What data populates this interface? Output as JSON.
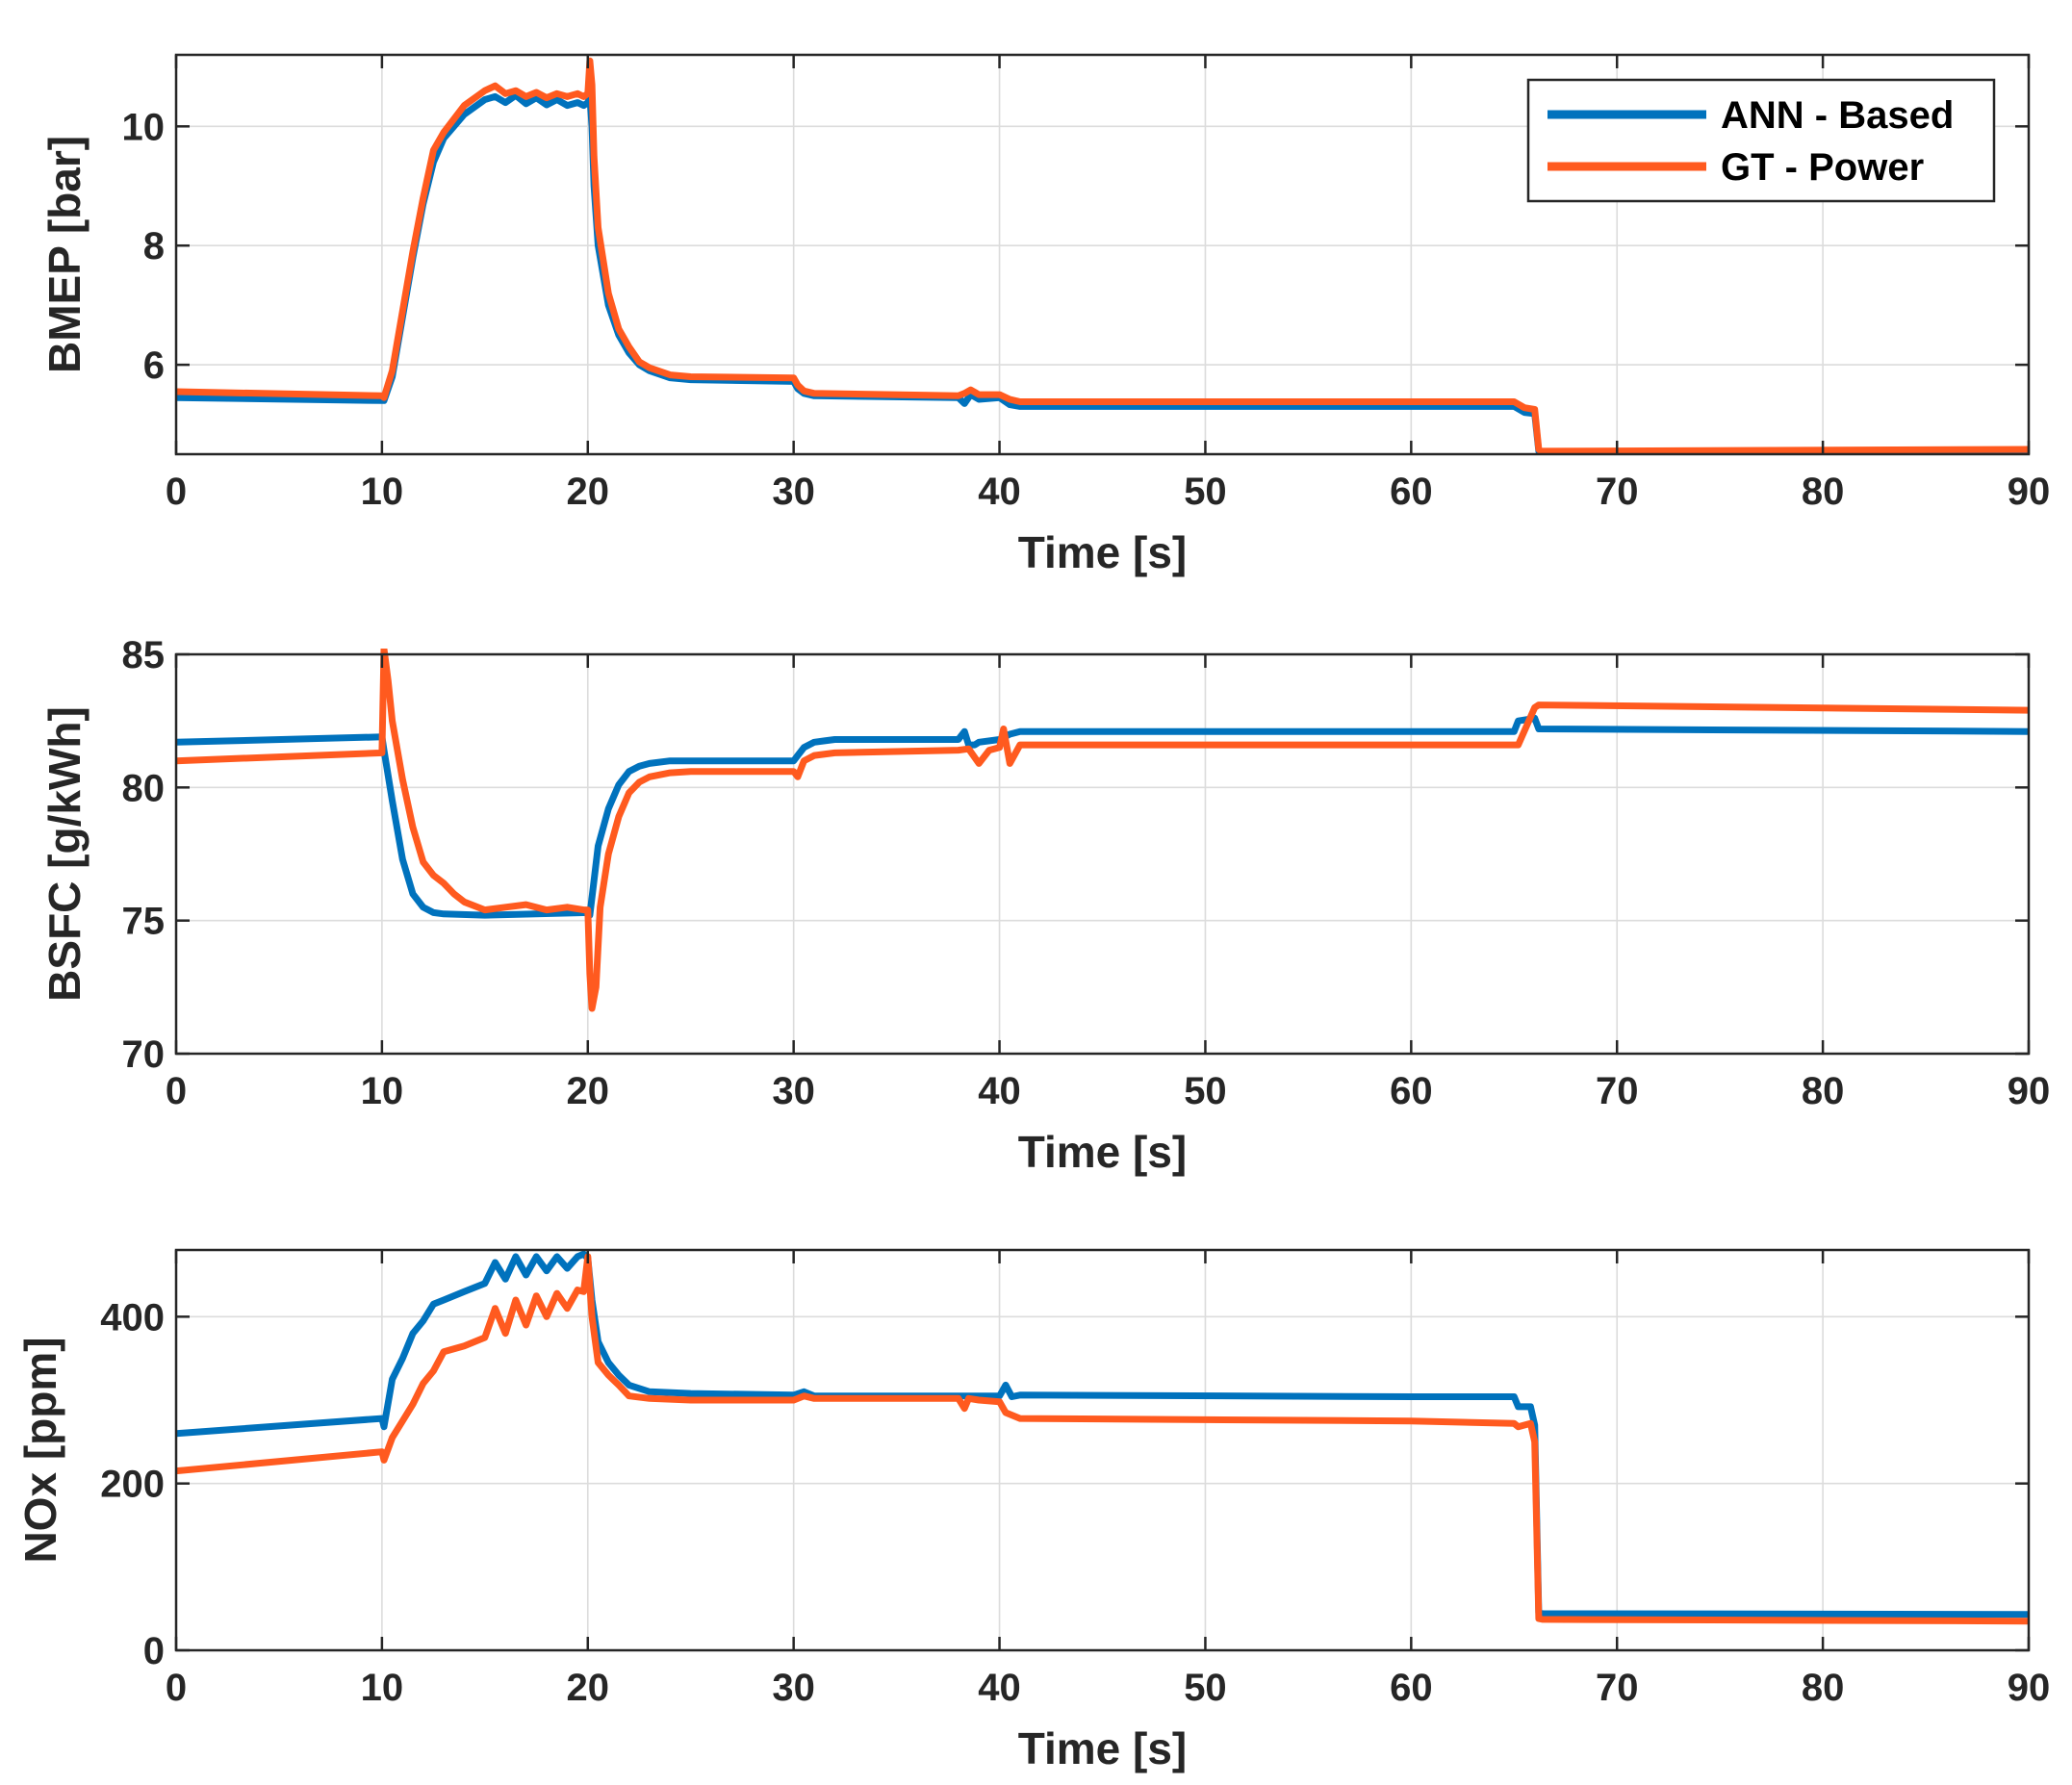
{
  "colors": {
    "ann": "#0072BD",
    "gt": "#FF5A1F",
    "grid": "#DCDCDC",
    "axis": "#262626"
  },
  "legend": {
    "placement": "top-right of first panel",
    "entries": [
      {
        "label": "ANN - Based",
        "color_key": "ann"
      },
      {
        "label": "GT - Power",
        "color_key": "gt"
      }
    ]
  },
  "chart_data": [
    {
      "type": "line",
      "title": "",
      "xlabel": "Time [s]",
      "ylabel": "BMEP [bar]",
      "xlim": [
        0,
        90
      ],
      "ylim": [
        4.5,
        11.2
      ],
      "xticks": [
        0,
        10,
        20,
        30,
        40,
        50,
        60,
        70,
        80,
        90
      ],
      "yticks": [
        6,
        8,
        10
      ],
      "grid": true,
      "series": [
        {
          "name": "ANN - Based",
          "x": [
            0,
            10,
            10.1,
            10.5,
            11,
            11.5,
            12,
            12.5,
            13,
            14,
            15,
            15.5,
            16,
            16.5,
            17,
            17.5,
            18,
            18.5,
            19,
            19.5,
            19.8,
            20,
            20.1,
            20.2,
            20.3,
            20.5,
            21,
            21.5,
            22,
            22.5,
            23,
            24,
            25,
            30,
            30.2,
            30.5,
            31,
            38,
            38.3,
            38.6,
            39,
            40,
            40.5,
            41,
            60,
            65,
            65.5,
            66,
            66.2,
            66.3,
            90
          ],
          "y": [
            5.45,
            5.4,
            5.4,
            5.8,
            6.8,
            7.8,
            8.7,
            9.4,
            9.8,
            10.2,
            10.45,
            10.5,
            10.4,
            10.52,
            10.38,
            10.48,
            10.36,
            10.45,
            10.35,
            10.4,
            10.35,
            10.4,
            10.5,
            10.0,
            9.0,
            8.0,
            7.0,
            6.5,
            6.2,
            6.0,
            5.9,
            5.78,
            5.75,
            5.72,
            5.6,
            5.52,
            5.48,
            5.45,
            5.35,
            5.5,
            5.42,
            5.45,
            5.33,
            5.3,
            5.3,
            5.3,
            5.2,
            5.18,
            4.55,
            4.5,
            4.55
          ]
        },
        {
          "name": "GT - Power",
          "x": [
            0,
            10,
            10.1,
            10.5,
            11,
            11.5,
            12,
            12.5,
            13,
            14,
            15,
            15.5,
            16,
            16.5,
            17,
            17.5,
            18,
            18.5,
            19,
            19.5,
            19.8,
            20,
            20.1,
            20.2,
            20.3,
            20.5,
            21,
            21.5,
            22,
            22.5,
            23,
            24,
            25,
            30,
            30.2,
            30.5,
            31,
            38,
            38.3,
            38.6,
            39,
            40,
            40.5,
            41,
            60,
            65,
            65.5,
            66,
            66.2,
            66.3,
            90
          ],
          "y": [
            5.55,
            5.48,
            5.45,
            5.9,
            6.9,
            7.9,
            8.8,
            9.6,
            9.9,
            10.35,
            10.6,
            10.68,
            10.55,
            10.6,
            10.5,
            10.57,
            10.48,
            10.55,
            10.5,
            10.55,
            10.5,
            10.55,
            11.1,
            10.7,
            9.5,
            8.3,
            7.2,
            6.6,
            6.3,
            6.05,
            5.95,
            5.83,
            5.8,
            5.78,
            5.66,
            5.56,
            5.52,
            5.48,
            5.52,
            5.58,
            5.5,
            5.5,
            5.42,
            5.38,
            5.38,
            5.38,
            5.28,
            5.25,
            4.58,
            4.55,
            4.58
          ]
        }
      ]
    },
    {
      "type": "line",
      "title": "",
      "xlabel": "Time [s]",
      "ylabel": "BSFC [g/kWh]",
      "xlim": [
        0,
        90
      ],
      "ylim": [
        70,
        85
      ],
      "xticks": [
        0,
        10,
        20,
        30,
        40,
        50,
        60,
        70,
        80,
        90
      ],
      "yticks": [
        70,
        75,
        80,
        85
      ],
      "grid": true,
      "series": [
        {
          "name": "ANN - Based",
          "x": [
            0,
            10,
            10.1,
            10.5,
            11,
            11.5,
            12,
            12.5,
            13,
            15,
            20,
            20.1,
            20.3,
            20.5,
            21,
            21.5,
            22,
            22.5,
            23,
            24,
            25,
            30,
            30.2,
            30.5,
            31,
            31.5,
            32,
            38,
            38.3,
            38.5,
            38.8,
            39,
            40,
            40.5,
            41,
            60,
            65,
            65.2,
            66,
            66.2,
            90
          ],
          "y": [
            81.7,
            81.9,
            81.4,
            79.5,
            77.3,
            76.0,
            75.5,
            75.3,
            75.25,
            75.2,
            75.3,
            75.2,
            76.5,
            77.8,
            79.2,
            80.1,
            80.6,
            80.8,
            80.9,
            81.0,
            81.0,
            81.0,
            81.2,
            81.5,
            81.7,
            81.75,
            81.8,
            81.8,
            82.1,
            81.6,
            81.6,
            81.7,
            81.8,
            82.0,
            82.1,
            82.1,
            82.1,
            82.5,
            82.6,
            82.2,
            82.1
          ]
        },
        {
          "name": "GT - Power",
          "x": [
            0,
            10,
            10.1,
            10.3,
            10.5,
            11,
            11.5,
            12,
            12.5,
            13,
            13.5,
            14,
            15,
            16,
            17,
            18,
            19,
            19.8,
            20,
            20.1,
            20.2,
            20.4,
            20.6,
            21,
            21.5,
            22,
            22.5,
            23,
            24,
            25,
            30,
            30.2,
            30.5,
            31,
            32,
            38,
            38.5,
            39,
            39.5,
            40,
            40.2,
            40.5,
            41,
            60,
            65,
            65.2,
            66,
            66.2,
            90
          ],
          "y": [
            81.0,
            81.3,
            85.2,
            84.0,
            82.5,
            80.3,
            78.5,
            77.2,
            76.7,
            76.4,
            76.0,
            75.7,
            75.4,
            75.5,
            75.6,
            75.4,
            75.5,
            75.4,
            75.4,
            73.0,
            71.7,
            72.5,
            75.5,
            77.5,
            78.9,
            79.8,
            80.2,
            80.4,
            80.55,
            80.6,
            80.6,
            80.4,
            81.0,
            81.2,
            81.3,
            81.4,
            81.45,
            80.9,
            81.4,
            81.5,
            82.2,
            80.9,
            81.6,
            81.6,
            81.6,
            81.6,
            83.0,
            83.1,
            82.9
          ]
        }
      ]
    },
    {
      "type": "line",
      "title": "",
      "xlabel": "Time [s]",
      "ylabel": "NOx [ppm]",
      "xlim": [
        0,
        90
      ],
      "ylim": [
        0,
        480
      ],
      "xticks": [
        0,
        10,
        20,
        30,
        40,
        50,
        60,
        70,
        80,
        90
      ],
      "yticks": [
        0,
        200,
        400
      ],
      "grid": true,
      "series": [
        {
          "name": "ANN - Based",
          "x": [
            0,
            10,
            10.1,
            10.5,
            11,
            11.5,
            12,
            12.5,
            13,
            14,
            15,
            15.5,
            16,
            16.5,
            17,
            17.5,
            18,
            18.5,
            19,
            19.5,
            19.8,
            20,
            20.2,
            20.5,
            21,
            21.5,
            22,
            23,
            25,
            30,
            30.5,
            31,
            38,
            40,
            40.3,
            40.6,
            41,
            60,
            65,
            65.2,
            65.8,
            66,
            66.2,
            66.4,
            90
          ],
          "y": [
            260,
            278,
            268,
            325,
            350,
            380,
            395,
            415,
            420,
            430,
            440,
            465,
            445,
            472,
            450,
            472,
            455,
            472,
            458,
            472,
            475,
            470,
            420,
            370,
            345,
            330,
            318,
            310,
            308,
            306,
            310,
            305,
            305,
            305,
            318,
            304,
            306,
            304,
            304,
            292,
            292,
            270,
            45,
            44,
            43
          ]
        },
        {
          "name": "GT - Power",
          "x": [
            0,
            10,
            10.1,
            10.5,
            11,
            11.5,
            12,
            12.5,
            13,
            14,
            15,
            15.5,
            16,
            16.5,
            17,
            17.5,
            18,
            18.5,
            19,
            19.5,
            19.8,
            20,
            20.2,
            20.5,
            21,
            21.5,
            22,
            23,
            25,
            30,
            30.5,
            31,
            38,
            38.3,
            38.5,
            39,
            40,
            40.3,
            41,
            60,
            65,
            65.2,
            65.8,
            66,
            66.2,
            66.4,
            90
          ],
          "y": [
            215,
            238,
            228,
            255,
            275,
            295,
            320,
            335,
            358,
            365,
            375,
            410,
            380,
            420,
            390,
            425,
            400,
            428,
            410,
            432,
            430,
            472,
            400,
            345,
            330,
            318,
            305,
            302,
            300,
            300,
            305,
            302,
            302,
            290,
            302,
            300,
            298,
            285,
            278,
            275,
            272,
            268,
            272,
            250,
            38,
            37,
            35
          ]
        }
      ]
    }
  ]
}
